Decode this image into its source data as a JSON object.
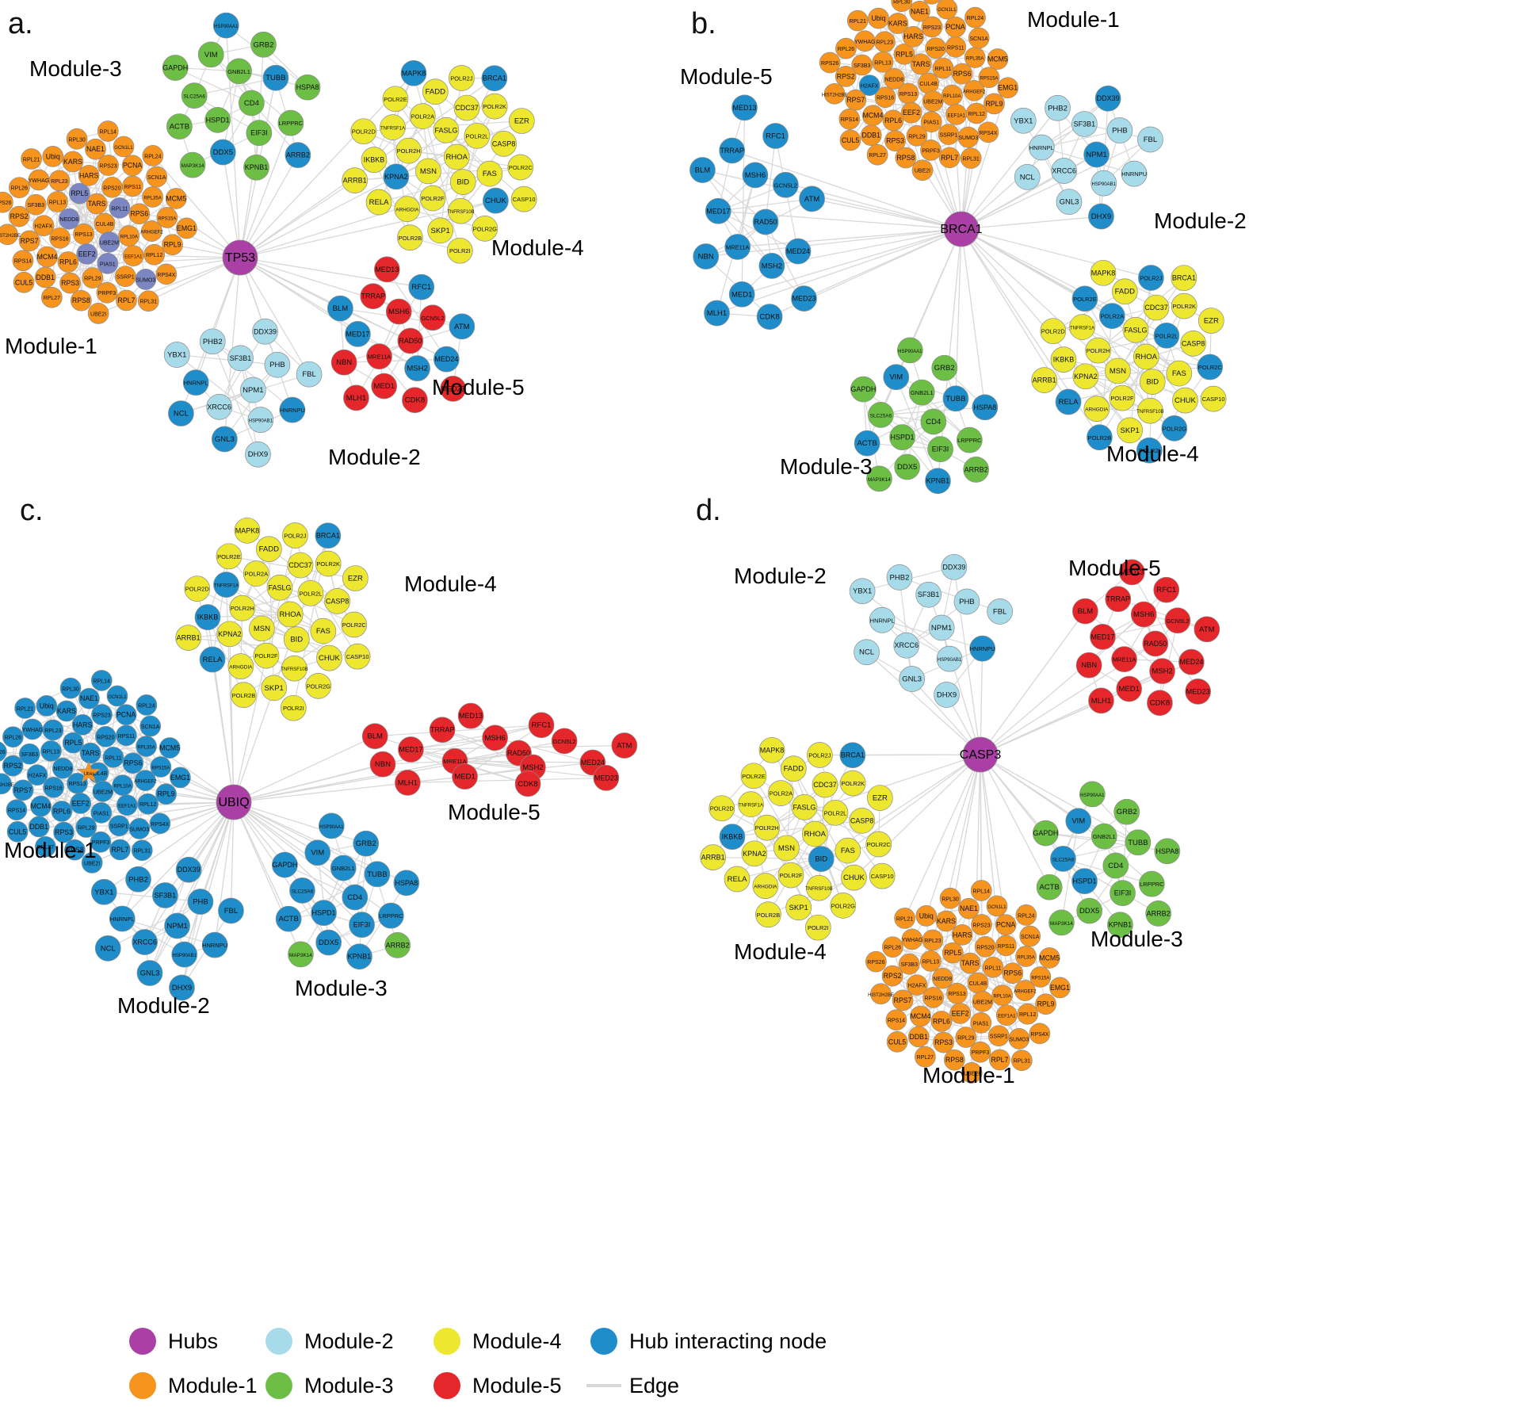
{
  "figure": {
    "description": "Protein-protein interaction hub networks with five modules per hub"
  },
  "colors": {
    "hub": "#AA3FA5",
    "module1": "#F7941E",
    "module2": "#A8DBEA",
    "module3": "#6CBE45",
    "module4": "#EDE72F",
    "module5": "#E5262A",
    "interacting": "#1F8DC9",
    "periwinkle": "#7B86C2",
    "edge": "#D8D8D8"
  },
  "shared_nodes": {
    "module1": [
      "CUL4B",
      "RPS13",
      "TARS",
      "UBE2M",
      "NEDD8",
      "RPL11",
      "EEF2",
      "RPL5",
      "RPL10A",
      "RPS16",
      "RPS20",
      "PIAS1",
      "RPL13",
      "RPS6",
      "RPL6",
      "HARS",
      "EEF1A1",
      "H2AFX",
      "RPS11",
      "RPL29",
      "RPL23",
      "ARHGEF2",
      "MCM4",
      "RPS23",
      "SSRP1",
      "SF3B3",
      "RPL35A",
      "RPS3",
      "KARS",
      "RPL12",
      "RPS7",
      "PCNA",
      "PRPF3",
      "YWHAG",
      "RPS15A",
      "DDB1",
      "NAE1",
      "SUMO3",
      "RPS2",
      "SCN1A",
      "RPS8",
      "Ubiq",
      "RPL9",
      "RPS14",
      "GCN1L1",
      "RPL7",
      "RPL26",
      "MCM5",
      "RPL27",
      "RPL30",
      "RPS4X",
      "HIST2H2BE",
      "RPL24",
      "UBE2I",
      "RPL21",
      "EMG1",
      "CUL5",
      "RPL14",
      "RPL31",
      "RPS26"
    ],
    "module2": [
      "NPM1",
      "XRCC6",
      "SF3B1",
      "HSP90AB1",
      "HNRNPL",
      "PHB",
      "GNL3",
      "PHB2",
      "HNRNPU",
      "NCL",
      "DDX39",
      "DHX9",
      "YBX1",
      "FBL"
    ],
    "module3": [
      "CD4",
      "HSPD1",
      "GNB2L1",
      "EIF3I",
      "SLC25A6",
      "TUBB",
      "DDX5",
      "VIM",
      "LRPPRC",
      "ACTB",
      "GRB2",
      "KPNB1",
      "GAPDH",
      "HSPA8",
      "MAP3K14",
      "HSP90AA1",
      "ARRB2"
    ],
    "module4": [
      "RHOA",
      "MSN",
      "FASLG",
      "BID",
      "POLR2H",
      "POLR2L",
      "POLR2F",
      "POLR2A",
      "FAS",
      "KPNA2",
      "CDC37",
      "TNFRSF10B",
      "TNFRSF1A",
      "CASP8",
      "ARHGDIA",
      "FADD",
      "CHUK",
      "IKBKB",
      "POLR2K",
      "SKP1",
      "POLR2E",
      "POLR2C",
      "RELA",
      "POLR2J",
      "POLR2G",
      "POLR2D",
      "EZR",
      "POLR2B",
      "MAPK8",
      "CASP10",
      "ARRB1",
      "BRCA1",
      "POLR2I"
    ],
    "module5": [
      "RAD50",
      "MRE11A",
      "MSH6",
      "MSH2",
      "MED17",
      "GCN5L2",
      "MED1",
      "TRRAP",
      "MED24",
      "NBN",
      "RFC1",
      "CDK8",
      "BLM",
      "ATM",
      "MLH1",
      "MED13",
      "MED23"
    ]
  },
  "panels": [
    {
      "letter": "a.",
      "hub": "TP53",
      "modules": [
        {
          "name": "Module-1",
          "color": "module1",
          "nodes_ref": "module1",
          "overrides": {
            "UBE2M": "periwinkle",
            "NEDD8": "periwinkle",
            "RPL11": "periwinkle",
            "EEF2": "periwinkle",
            "PIAS1": "periwinkle",
            "SUMO3": "periwinkle",
            "RPL5": "periwinkle"
          }
        },
        {
          "name": "Module-2",
          "color": "module2",
          "nodes_ref": "module2",
          "overrides": {
            "HNRNPL": "interacting",
            "GNL3": "interacting",
            "NCL": "interacting",
            "HNRNPU": "interacting"
          }
        },
        {
          "name": "Module-3",
          "color": "module3",
          "nodes_ref": "module3",
          "overrides": {
            "TUBB": "interacting",
            "DDX5": "interacting",
            "HSP90AA1": "interacting",
            "ARRB2": "interacting"
          }
        },
        {
          "name": "Module-4",
          "color": "module4",
          "nodes_ref": "module4",
          "overrides": {
            "KPNA2": "interacting",
            "CHUK": "interacting",
            "MAPK8": "interacting",
            "BRCA1": "interacting"
          }
        },
        {
          "name": "Module-5",
          "color": "module5",
          "nodes_ref": "module5",
          "overrides": {
            "MSH2": "interacting",
            "MED17": "interacting",
            "MED24": "interacting",
            "BLM": "interacting",
            "ATM": "interacting",
            "RFC1": "interacting"
          }
        }
      ]
    },
    {
      "letter": "b.",
      "hub": "BRCA1",
      "modules": [
        {
          "name": "Module-1",
          "color": "module1",
          "nodes_ref": "module1",
          "overrides": {
            "H2AFX": "interacting"
          }
        },
        {
          "name": "Module-2",
          "color": "module2",
          "nodes_ref": "module2",
          "overrides": {
            "NPM1": "interacting",
            "DHX9": "interacting",
            "DDX39": "interacting"
          }
        },
        {
          "name": "Module-3",
          "color": "module3",
          "nodes_ref": "module3",
          "overrides": {
            "TUBB": "interacting",
            "HSPA8": "interacting",
            "ACTB": "interacting",
            "VIM": "interacting",
            "KPNB1": "interacting"
          }
        },
        {
          "name": "Module-4",
          "color": "module4",
          "nodes_ref": "module4",
          "overrides": {
            "POLR2A": "interacting",
            "POLR2B": "interacting",
            "POLR2C": "interacting",
            "POLR2L": "interacting",
            "POLR2E": "interacting",
            "POLR2G": "interacting",
            "POLR2J": "interacting",
            "POLR2I": "interacting",
            "RELA": "interacting"
          }
        },
        {
          "name": "Module-5",
          "color": "interacting",
          "nodes_ref": "module5",
          "overrides": {}
        }
      ]
    },
    {
      "letter": "c.",
      "hub": "UBIQ",
      "modules": [
        {
          "name": "Module-1",
          "color": "interacting",
          "nodes_ref": "module1",
          "star": "Ubiq",
          "overrides": {}
        },
        {
          "name": "Module-2",
          "color": "interacting",
          "nodes_ref": "module2",
          "overrides": {}
        },
        {
          "name": "Module-3",
          "color": "interacting",
          "nodes_ref": "module3",
          "overrides": {
            "ARRB2": "module3",
            "MAP3K14": "module3"
          }
        },
        {
          "name": "Module-4",
          "color": "module4",
          "nodes_ref": "module4",
          "overrides": {
            "BRCA1": "interacting",
            "IKBKB": "interacting",
            "RELA": "interacting",
            "TNFRSF1A": "interacting"
          }
        },
        {
          "name": "Module-5",
          "color": "module5",
          "nodes_ref": "module5",
          "overrides": {}
        }
      ]
    },
    {
      "letter": "d.",
      "hub": "CASP3",
      "modules": [
        {
          "name": "Module-1",
          "color": "module1",
          "nodes_ref": "module1",
          "overrides": {}
        },
        {
          "name": "Module-2",
          "color": "module2",
          "nodes_ref": "module2",
          "overrides": {
            "HNRNPU": "interacting"
          }
        },
        {
          "name": "Module-3",
          "color": "module3",
          "nodes_ref": "module3",
          "overrides": {
            "VIM": "interacting",
            "SLC25A6": "interacting",
            "HSPD1": "interacting"
          }
        },
        {
          "name": "Module-4",
          "color": "module4",
          "nodes_ref": "module4",
          "overrides": {
            "BRCA1": "interacting",
            "IKBKB": "interacting",
            "BID": "interacting"
          }
        },
        {
          "name": "Module-5",
          "color": "module5",
          "nodes_ref": "module5",
          "overrides": {}
        }
      ]
    }
  ],
  "legend": {
    "items": [
      {
        "label": "Hubs",
        "color": "hub",
        "shape": "circle"
      },
      {
        "label": "Module-1",
        "color": "module1",
        "shape": "circle"
      },
      {
        "label": "Module-2",
        "color": "module2",
        "shape": "circle"
      },
      {
        "label": "Module-3",
        "color": "module3",
        "shape": "circle"
      },
      {
        "label": "Module-4",
        "color": "module4",
        "shape": "circle"
      },
      {
        "label": "Module-5",
        "color": "module5",
        "shape": "circle"
      },
      {
        "label": "Hub interacting node",
        "color": "interacting",
        "shape": "circle"
      },
      {
        "label": "Edge",
        "color": "edge",
        "shape": "line"
      }
    ]
  }
}
